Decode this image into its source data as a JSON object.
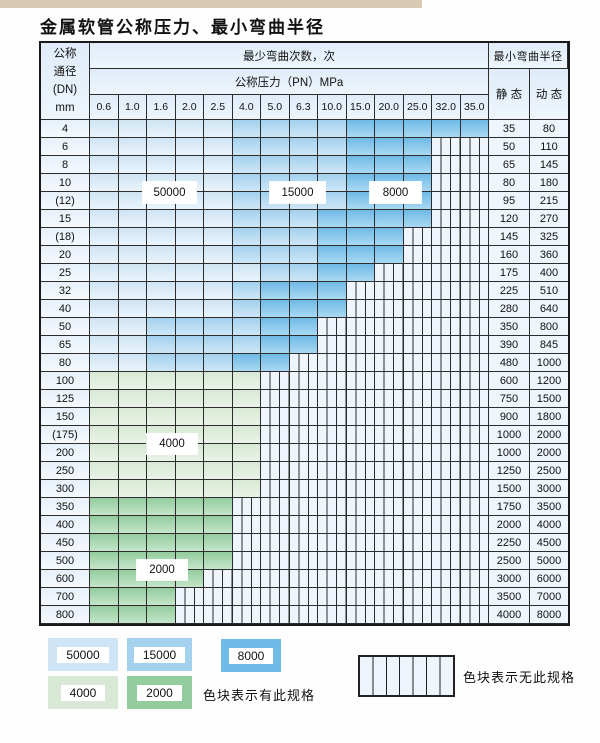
{
  "title": "金属软管公称压力、最小弯曲半径",
  "palette": {
    "b1": "#cfe4f4",
    "b2": "#a3d1ee",
    "b3": "#6fbae6",
    "g1": "#d7e9d4",
    "g2": "#93cd9d",
    "hatch": "#eef5fc",
    "grid": "#2d2d2d",
    "strip": "#d8cab3"
  },
  "header": {
    "dn_lines": [
      "公称",
      "通径",
      "(DN)",
      "mm"
    ],
    "bend_count": "最少弯曲次数，次",
    "pn": "公称压力（PN）MPa",
    "radius": "最小弯曲半径",
    "static": "静 态",
    "dynamic": "动 态"
  },
  "legend": {
    "has_note": "色块表示有此规格",
    "none_note": "色块表示无此规格"
  },
  "chart_data": {
    "type": "table",
    "title": "金属软管公称压力、最小弯曲半径",
    "pressure_columns_MPa": [
      0.6,
      1.0,
      1.6,
      2.0,
      2.5,
      4.0,
      5.0,
      6.3,
      10.0,
      15.0,
      20.0,
      25.0,
      32.0,
      35.0
    ],
    "cycle_levels": [
      "50000",
      "15000",
      "8000",
      "4000",
      "2000"
    ],
    "no_spec_meaning": "色块表示无此规格",
    "rows": [
      {
        "dn": "4",
        "spans": [
          [
            "50000",
            5
          ],
          [
            "15000",
            4
          ],
          [
            "8000",
            5
          ]
        ],
        "static": "35",
        "dynamic": "80"
      },
      {
        "dn": "6",
        "spans": [
          [
            "50000",
            5
          ],
          [
            "15000",
            4
          ],
          [
            "8000",
            3
          ]
        ],
        "static": "50",
        "dynamic": "110"
      },
      {
        "dn": "8",
        "spans": [
          [
            "50000",
            5
          ],
          [
            "15000",
            4
          ],
          [
            "8000",
            3
          ]
        ],
        "static": "65",
        "dynamic": "145"
      },
      {
        "dn": "10",
        "spans": [
          [
            "50000",
            5
          ],
          [
            "15000",
            4
          ],
          [
            "8000",
            3
          ]
        ],
        "static": "80",
        "dynamic": "180"
      },
      {
        "dn": "(12)",
        "spans": [
          [
            "50000",
            5
          ],
          [
            "15000",
            4
          ],
          [
            "8000",
            3
          ]
        ],
        "static": "95",
        "dynamic": "215"
      },
      {
        "dn": "15",
        "spans": [
          [
            "50000",
            5
          ],
          [
            "15000",
            3
          ],
          [
            "8000",
            4
          ]
        ],
        "static": "120",
        "dynamic": "270"
      },
      {
        "dn": "(18)",
        "spans": [
          [
            "50000",
            5
          ],
          [
            "15000",
            3
          ],
          [
            "8000",
            3
          ]
        ],
        "static": "145",
        "dynamic": "325"
      },
      {
        "dn": "20",
        "spans": [
          [
            "50000",
            5
          ],
          [
            "15000",
            3
          ],
          [
            "8000",
            3
          ]
        ],
        "static": "160",
        "dynamic": "360"
      },
      {
        "dn": "25",
        "spans": [
          [
            "50000",
            6
          ],
          [
            "15000",
            2
          ],
          [
            "8000",
            2
          ]
        ],
        "static": "175",
        "dynamic": "400"
      },
      {
        "dn": "32",
        "spans": [
          [
            "50000",
            5
          ],
          [
            "15000",
            1
          ],
          [
            "8000",
            3
          ]
        ],
        "static": "225",
        "dynamic": "510"
      },
      {
        "dn": "40",
        "spans": [
          [
            "50000",
            5
          ],
          [
            "15000",
            1
          ],
          [
            "8000",
            3
          ]
        ],
        "static": "280",
        "dynamic": "640"
      },
      {
        "dn": "50",
        "spans": [
          [
            "50000",
            2
          ],
          [
            "15000",
            4
          ],
          [
            "8000",
            2
          ]
        ],
        "static": "350",
        "dynamic": "800"
      },
      {
        "dn": "65",
        "spans": [
          [
            "50000",
            2
          ],
          [
            "15000",
            4
          ],
          [
            "8000",
            2
          ]
        ],
        "static": "390",
        "dynamic": "845"
      },
      {
        "dn": "80",
        "spans": [
          [
            "50000",
            2
          ],
          [
            "15000",
            3
          ],
          [
            "8000",
            2
          ]
        ],
        "static": "480",
        "dynamic": "1000"
      },
      {
        "dn": "100",
        "spans": [
          [
            "4000",
            6
          ]
        ],
        "static": "600",
        "dynamic": "1200"
      },
      {
        "dn": "125",
        "spans": [
          [
            "4000",
            6
          ]
        ],
        "static": "750",
        "dynamic": "1500"
      },
      {
        "dn": "150",
        "spans": [
          [
            "4000",
            6
          ]
        ],
        "static": "900",
        "dynamic": "1800"
      },
      {
        "dn": "(175)",
        "spans": [
          [
            "4000",
            6
          ]
        ],
        "static": "1000",
        "dynamic": "2000"
      },
      {
        "dn": "200",
        "spans": [
          [
            "4000",
            6
          ]
        ],
        "static": "1000",
        "dynamic": "2000"
      },
      {
        "dn": "250",
        "spans": [
          [
            "4000",
            6
          ]
        ],
        "static": "1250",
        "dynamic": "2500"
      },
      {
        "dn": "300",
        "spans": [
          [
            "4000",
            6
          ]
        ],
        "static": "1500",
        "dynamic": "3000"
      },
      {
        "dn": "350",
        "spans": [
          [
            "2000",
            5
          ]
        ],
        "static": "1750",
        "dynamic": "3500"
      },
      {
        "dn": "400",
        "spans": [
          [
            "2000",
            5
          ]
        ],
        "static": "2000",
        "dynamic": "4000"
      },
      {
        "dn": "450",
        "spans": [
          [
            "2000",
            5
          ]
        ],
        "static": "2250",
        "dynamic": "4500"
      },
      {
        "dn": "500",
        "spans": [
          [
            "2000",
            5
          ]
        ],
        "static": "2500",
        "dynamic": "5000"
      },
      {
        "dn": "600",
        "spans": [
          [
            "2000",
            4
          ]
        ],
        "static": "3000",
        "dynamic": "6000"
      },
      {
        "dn": "700",
        "spans": [
          [
            "2000",
            3
          ]
        ],
        "static": "3500",
        "dynamic": "7000"
      },
      {
        "dn": "800",
        "spans": [
          [
            "2000",
            3
          ]
        ],
        "static": "4000",
        "dynamic": "8000"
      }
    ]
  }
}
